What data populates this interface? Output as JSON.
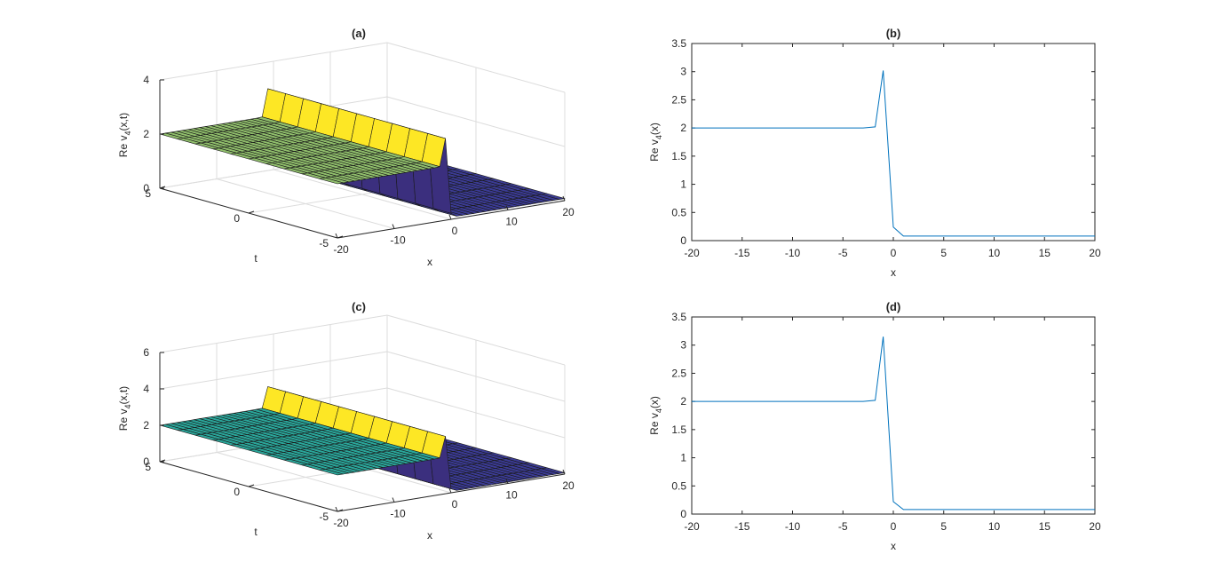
{
  "chart_data": [
    {
      "panel": "(a)",
      "type": "surface",
      "title": "(a)",
      "xlabel": "x",
      "ylabel": "t",
      "zlabel_main": "Re v",
      "zlabel_sub": "4",
      "zlabel_tail": "(x,t)",
      "xlim": [
        -20,
        20
      ],
      "ylim": [
        -5,
        5
      ],
      "zlim": [
        0,
        4
      ],
      "x_ticks": [
        "-20",
        "-10",
        "0",
        "10",
        "20"
      ],
      "y_ticks": [
        "-5",
        "0",
        "5"
      ],
      "z_ticks": [
        "0",
        "2",
        "4"
      ],
      "profile_x": [
        -20,
        -3,
        -1.5,
        -1,
        0,
        1,
        20
      ],
      "profile_z": [
        2.0,
        2.0,
        2.02,
        3.02,
        0.22,
        0.08,
        0.08
      ],
      "colors": {
        "plateau": "#8fbd6b",
        "peak": "#fde725",
        "trough": "#3b2f7e",
        "floor": "#3b3b94"
      }
    },
    {
      "panel": "(b)",
      "type": "line",
      "title": "(b)",
      "xlabel": "x",
      "ylabel_main": "Re v",
      "ylabel_sub": "4",
      "ylabel_tail": "(x)",
      "xlim": [
        -20,
        20
      ],
      "ylim": [
        0,
        3.5
      ],
      "x_ticks": [
        "-20",
        "-15",
        "-10",
        "-5",
        "0",
        "5",
        "10",
        "15",
        "20"
      ],
      "y_ticks": [
        "0",
        "0.5",
        "1",
        "1.5",
        "2",
        "2.5",
        "3",
        "3.5"
      ],
      "series": [
        {
          "x": [
            -20,
            -3,
            -1.8,
            -1,
            0,
            1,
            20
          ],
          "y": [
            2.0,
            2.0,
            2.02,
            3.02,
            0.24,
            0.08,
            0.08
          ],
          "color": "#0072bd"
        }
      ]
    },
    {
      "panel": "(c)",
      "type": "surface",
      "title": "(c)",
      "xlabel": "x",
      "ylabel": "t",
      "zlabel_main": "Re v",
      "zlabel_sub": "4",
      "zlabel_tail": "(x,t)",
      "xlim": [
        -20,
        20
      ],
      "ylim": [
        -5,
        5
      ],
      "zlim": [
        0,
        6
      ],
      "x_ticks": [
        "-20",
        "-10",
        "0",
        "10",
        "20"
      ],
      "y_ticks": [
        "-5",
        "0",
        "5"
      ],
      "z_ticks": [
        "0",
        "2",
        "4",
        "6"
      ],
      "profile_x": [
        -20,
        -3,
        -1.5,
        -1,
        0,
        1,
        20
      ],
      "profile_z": [
        2.0,
        2.0,
        2.02,
        3.15,
        0.22,
        0.08,
        0.08
      ],
      "colors": {
        "plateau": "#2aa69a",
        "peak": "#fde725",
        "trough": "#3b2f7e",
        "floor": "#3b3b94"
      }
    },
    {
      "panel": "(d)",
      "type": "line",
      "title": "(d)",
      "xlabel": "x",
      "ylabel_main": "Re v",
      "ylabel_sub": "4",
      "ylabel_tail": "(x)",
      "xlim": [
        -20,
        20
      ],
      "ylim": [
        0,
        3.5
      ],
      "x_ticks": [
        "-20",
        "-15",
        "-10",
        "-5",
        "0",
        "5",
        "10",
        "15",
        "20"
      ],
      "y_ticks": [
        "0",
        "0.5",
        "1",
        "1.5",
        "2",
        "2.5",
        "3",
        "3.5"
      ],
      "series": [
        {
          "x": [
            -20,
            -3,
            -1.8,
            -1,
            0,
            1,
            20
          ],
          "y": [
            2.0,
            2.0,
            2.02,
            3.15,
            0.22,
            0.08,
            0.08
          ],
          "color": "#0072bd"
        }
      ]
    }
  ]
}
